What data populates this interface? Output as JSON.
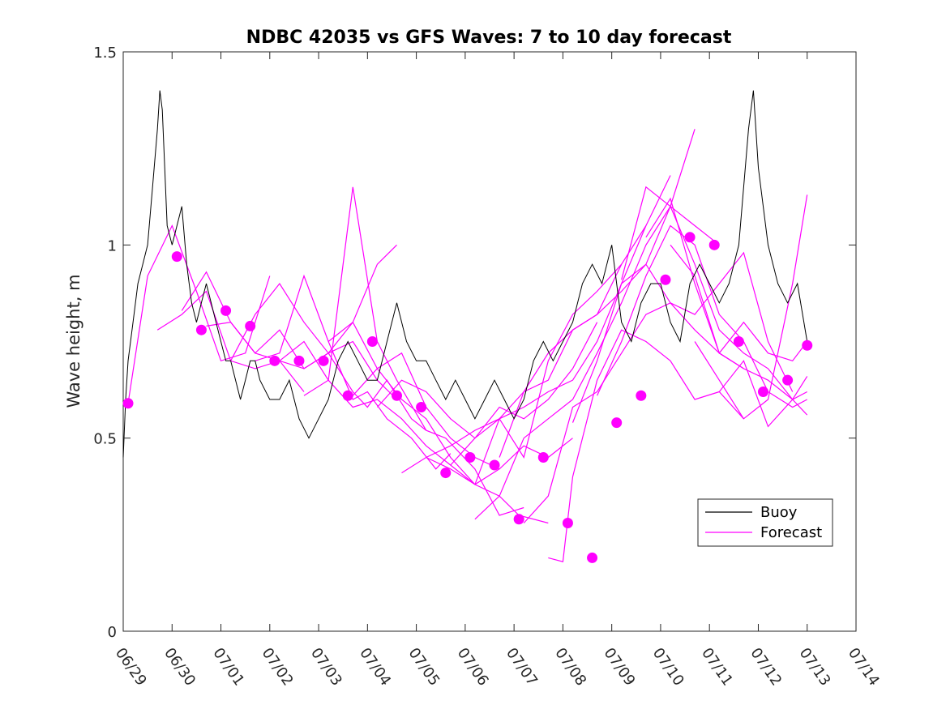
{
  "chart_data": {
    "type": "line",
    "title": "NDBC 42035 vs GFS Waves: 7 to 10 day forecast",
    "xlabel": "",
    "ylabel": "Wave height, m",
    "x_ticks": [
      "06/29",
      "06/30",
      "07/01",
      "07/02",
      "07/03",
      "07/04",
      "07/05",
      "07/06",
      "07/07",
      "07/08",
      "07/09",
      "07/10",
      "07/11",
      "07/12",
      "07/13",
      "07/14"
    ],
    "xlim_days": [
      0,
      15
    ],
    "ylim": [
      0,
      1.5
    ],
    "y_ticks": [
      0,
      0.5,
      1,
      1.5
    ],
    "y_tick_labels": [
      "0",
      "0.5",
      "1",
      "1.5"
    ],
    "grid": false,
    "legend_position": "lower-right",
    "colors": {
      "buoy": "#000000",
      "forecast": "#ff00ff"
    },
    "legend": [
      {
        "label": "Buoy",
        "color": "#000000"
      },
      {
        "label": "Forecast",
        "color": "#ff00ff"
      }
    ],
    "series": [
      {
        "name": "Buoy",
        "x_days": [
          0,
          0.05,
          0.1,
          0.2,
          0.3,
          0.4,
          0.5,
          0.6,
          0.7,
          0.75,
          0.8,
          0.85,
          0.9,
          1.0,
          1.1,
          1.2,
          1.3,
          1.4,
          1.5,
          1.6,
          1.7,
          1.8,
          1.9,
          2.0,
          2.1,
          2.2,
          2.3,
          2.4,
          2.5,
          2.6,
          2.7,
          2.8,
          3.0,
          3.2,
          3.4,
          3.6,
          3.8,
          4.0,
          4.2,
          4.4,
          4.6,
          4.8,
          5.0,
          5.2,
          5.4,
          5.6,
          5.8,
          6.0,
          6.2,
          6.4,
          6.6,
          6.8,
          7.0,
          7.2,
          7.4,
          7.6,
          7.8,
          8.0,
          8.2,
          8.4,
          8.6,
          8.8,
          9.0,
          9.2,
          9.4,
          9.6,
          9.8,
          10.0,
          10.2,
          10.4,
          10.6,
          10.8,
          11.0,
          11.2,
          11.4,
          11.6,
          11.8,
          12.0,
          12.2,
          12.4,
          12.6,
          12.8,
          12.9,
          13.0,
          13.2,
          13.4,
          13.6,
          13.8,
          14.0
        ],
        "values": [
          0.45,
          0.6,
          0.7,
          0.8,
          0.9,
          0.95,
          1.0,
          1.15,
          1.3,
          1.4,
          1.35,
          1.2,
          1.05,
          1.0,
          1.05,
          1.1,
          0.95,
          0.85,
          0.8,
          0.85,
          0.9,
          0.85,
          0.8,
          0.75,
          0.7,
          0.7,
          0.65,
          0.6,
          0.65,
          0.7,
          0.7,
          0.65,
          0.6,
          0.6,
          0.65,
          0.55,
          0.5,
          0.55,
          0.6,
          0.7,
          0.75,
          0.7,
          0.65,
          0.65,
          0.75,
          0.85,
          0.75,
          0.7,
          0.7,
          0.65,
          0.6,
          0.65,
          0.6,
          0.55,
          0.6,
          0.65,
          0.6,
          0.55,
          0.6,
          0.7,
          0.75,
          0.7,
          0.75,
          0.8,
          0.9,
          0.95,
          0.9,
          1.0,
          0.8,
          0.75,
          0.85,
          0.9,
          0.9,
          0.8,
          0.75,
          0.9,
          0.95,
          0.9,
          0.85,
          0.9,
          1.0,
          1.3,
          1.4,
          1.2,
          1.0,
          0.9,
          0.85,
          0.9,
          0.75
        ]
      },
      {
        "name": "Forecast",
        "runs": [
          {
            "x_days": [
              0.1,
              0.5,
              1.0,
              1.5,
              2.0,
              2.5,
              3.0
            ],
            "values": [
              0.59,
              0.92,
              1.05,
              0.88,
              0.7,
              0.72,
              0.92
            ]
          },
          {
            "x_days": [
              0.7,
              1.2,
              1.7,
              2.2,
              2.7,
              3.2,
              3.7
            ],
            "values": [
              0.78,
              0.82,
              0.88,
              0.7,
              0.68,
              0.7,
              0.62
            ]
          },
          {
            "x_days": [
              1.2,
              1.7,
              2.2,
              2.7,
              3.2,
              3.7,
              4.2,
              4.7,
              5.2,
              5.6
            ],
            "values": [
              0.83,
              0.93,
              0.8,
              0.72,
              0.78,
              0.68,
              0.72,
              0.8,
              0.95,
              1.0
            ]
          },
          {
            "x_days": [
              1.7,
              2.2,
              2.7,
              3.2,
              3.7,
              4.2,
              4.7,
              5.2,
              5.6
            ],
            "values": [
              0.79,
              0.8,
              0.72,
              0.7,
              0.68,
              0.72,
              0.75,
              0.65,
              0.6
            ]
          },
          {
            "x_days": [
              2.2,
              2.7,
              3.2,
              3.7,
              4.2,
              4.7,
              5.0,
              5.4,
              5.9,
              6.2
            ],
            "values": [
              0.7,
              0.82,
              0.9,
              0.8,
              0.72,
              0.62,
              0.58,
              0.65,
              0.55,
              0.52
            ]
          },
          {
            "x_days": [
              2.7,
              3.2,
              3.7,
              4.2,
              4.7,
              5.0,
              5.4,
              5.9,
              6.4,
              6.7
            ],
            "values": [
              0.7,
              0.72,
              0.92,
              0.75,
              0.6,
              0.62,
              0.55,
              0.5,
              0.42,
              0.46
            ]
          },
          {
            "x_days": [
              3.2,
              3.7,
              4.2,
              4.7,
              5.2,
              5.7,
              6.2,
              6.7,
              7.2,
              7.7
            ],
            "values": [
              0.7,
              0.75,
              0.65,
              0.58,
              0.6,
              0.55,
              0.48,
              0.43,
              0.38,
              0.42
            ]
          },
          {
            "x_days": [
              3.7,
              4.2,
              4.7,
              5.2,
              5.6,
              6.2,
              6.6,
              7.2,
              7.7,
              8.2
            ],
            "values": [
              0.61,
              0.65,
              1.15,
              0.75,
              0.65,
              0.52,
              0.5,
              0.42,
              0.3,
              0.32
            ]
          },
          {
            "x_days": [
              4.2,
              4.7,
              5.2,
              5.7,
              6.2,
              6.7,
              7.2,
              7.7,
              8.1,
              8.7
            ],
            "values": [
              0.75,
              0.8,
              0.68,
              0.6,
              0.55,
              0.45,
              0.38,
              0.35,
              0.3,
              0.28
            ]
          },
          {
            "x_days": [
              4.7,
              5.2,
              5.7,
              6.2,
              6.7,
              7.2,
              7.7,
              8.2,
              8.7,
              9.2
            ],
            "values": [
              0.61,
              0.68,
              0.72,
              0.58,
              0.5,
              0.45,
              0.42,
              0.48,
              0.45,
              0.5
            ]
          },
          {
            "x_days": [
              5.2,
              5.7,
              6.2,
              6.7,
              7.2,
              7.7,
              8.2,
              8.7,
              9.2,
              9.7
            ],
            "values": [
              0.58,
              0.65,
              0.62,
              0.55,
              0.5,
              0.58,
              0.55,
              0.6,
              0.68,
              0.8
            ]
          },
          {
            "x_days": [
              5.7,
              6.2,
              6.7,
              7.2,
              7.7,
              8.2,
              8.7,
              9.2,
              9.7,
              10.2
            ],
            "values": [
              0.41,
              0.45,
              0.42,
              0.38,
              0.55,
              0.45,
              0.7,
              0.82,
              0.88,
              0.95
            ]
          },
          {
            "x_days": [
              6.2,
              6.7,
              7.2,
              7.7,
              8.2,
              8.7,
              9.2,
              9.7,
              10.2,
              10.7
            ],
            "values": [
              0.45,
              0.48,
              0.52,
              0.55,
              0.58,
              0.62,
              0.65,
              0.75,
              0.9,
              1.05
            ]
          },
          {
            "x_days": [
              6.7,
              7.2,
              7.7,
              8.2,
              8.7,
              9.2,
              9.7,
              10.2,
              10.7,
              11.2
            ],
            "values": [
              0.43,
              0.5,
              0.55,
              0.62,
              0.65,
              0.78,
              0.82,
              0.95,
              1.05,
              1.18
            ]
          },
          {
            "x_days": [
              7.2,
              7.7,
              8.2,
              8.7,
              9.2,
              9.7,
              10.2,
              10.7,
              11.2,
              11.7
            ],
            "values": [
              0.29,
              0.35,
              0.5,
              0.55,
              0.6,
              0.72,
              0.85,
              1.0,
              1.1,
              1.3
            ]
          },
          {
            "x_days": [
              7.7,
              8.2,
              8.7,
              9.2,
              9.7,
              10.2,
              10.7,
              11.2,
              11.7,
              12.2
            ],
            "values": [
              0.45,
              0.62,
              0.72,
              0.78,
              0.82,
              0.88,
              0.95,
              1.1,
              1.05,
              1.0
            ]
          },
          {
            "x_days": [
              8.2,
              8.7,
              9.2,
              9.7,
              10.2,
              10.7,
              11.2,
              11.7,
              12.2,
              12.7
            ],
            "values": [
              0.28,
              0.35,
              0.58,
              0.62,
              0.72,
              0.82,
              0.85,
              0.78,
              0.72,
              0.68
            ]
          },
          {
            "x_days": [
              8.7,
              9.0,
              9.2,
              9.7,
              10.2,
              10.7,
              11.2,
              11.7,
              12.2,
              12.7
            ],
            "values": [
              0.19,
              0.18,
              0.4,
              0.65,
              0.78,
              0.75,
              0.7,
              0.6,
              0.62,
              0.55
            ]
          },
          {
            "x_days": [
              9.2,
              9.7,
              10.2,
              10.7,
              11.2,
              11.7,
              12.2,
              12.7,
              13.2,
              13.7
            ],
            "values": [
              0.54,
              0.7,
              0.9,
              0.95,
              0.85,
              0.82,
              0.9,
              0.98,
              0.75,
              0.62
            ]
          },
          {
            "x_days": [
              9.7,
              10.2,
              10.7,
              11.2,
              11.7,
              12.2,
              12.7,
              13.2,
              13.7,
              14.0
            ],
            "values": [
              0.61,
              0.75,
              0.92,
              1.05,
              1.0,
              0.82,
              0.75,
              0.62,
              0.58,
              0.6
            ]
          },
          {
            "x_days": [
              10.2,
              10.7,
              11.2,
              11.7,
              12.2,
              12.7,
              13.2,
              13.7,
              14.0
            ],
            "values": [
              0.91,
              1.15,
              1.1,
              0.95,
              0.78,
              0.72,
              0.68,
              0.6,
              0.56
            ]
          },
          {
            "x_days": [
              10.7,
              11.2,
              11.7,
              12.2,
              12.7,
              13.2,
              13.7,
              14.0
            ],
            "values": [
              1.02,
              1.12,
              0.9,
              0.72,
              0.8,
              0.72,
              0.7,
              0.75
            ]
          },
          {
            "x_days": [
              11.2,
              11.7,
              12.2,
              12.7,
              13.2,
              13.7,
              14.0
            ],
            "values": [
              1.0,
              0.92,
              0.72,
              0.68,
              0.65,
              0.6,
              0.62
            ]
          },
          {
            "x_days": [
              11.7,
              12.2,
              12.7,
              13.2,
              13.7,
              14.0
            ],
            "values": [
              0.75,
              0.65,
              0.55,
              0.6,
              0.9,
              1.13
            ]
          },
          {
            "x_days": [
              12.2,
              12.7,
              13.2,
              13.7,
              14.0
            ],
            "values": [
              0.62,
              0.7,
              0.53,
              0.6,
              0.66
            ]
          }
        ]
      },
      {
        "name": "",
        "type": "scatter",
        "x_days": [
          0.1,
          1.1,
          1.6,
          2.1,
          2.6,
          3.1,
          3.6,
          4.1,
          4.6,
          5.1,
          5.6,
          6.1,
          6.6,
          7.1,
          7.6,
          8.1,
          8.6,
          9.1,
          9.6,
          10.1,
          10.6,
          11.1,
          11.6,
          12.1,
          12.6,
          13.1,
          13.6,
          14.0
        ],
        "values": [
          0.59,
          0.97,
          0.78,
          0.83,
          0.79,
          0.7,
          0.7,
          0.7,
          0.61,
          0.75,
          0.61,
          0.58,
          0.41,
          0.45,
          0.43,
          0.29,
          0.45,
          0.28,
          0.19,
          0.54,
          0.61,
          0.91,
          1.02,
          1.0,
          0.75,
          0.62,
          0.65,
          0.74
        ]
      }
    ]
  }
}
